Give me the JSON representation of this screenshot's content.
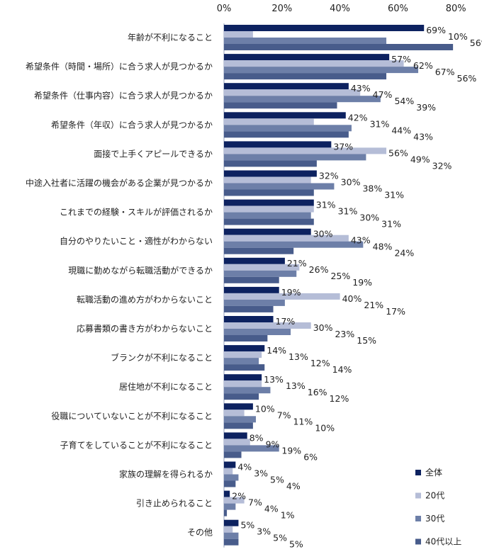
{
  "chart_data": {
    "type": "bar",
    "orientation": "horizontal",
    "xlim": [
      0,
      80
    ],
    "x_ticks": [
      "0%",
      "20%",
      "40%",
      "60%",
      "80%"
    ],
    "grid": false,
    "legend_position": "bottom-right",
    "categories": [
      "年齢が不利になること",
      "希望条件（時間・場所）に合う求人が見つかるか",
      "希望条件（仕事内容）に合う求人が見つかるか",
      "希望条件（年収）に合う求人が見つかるか",
      "面接で上手くアピールできるか",
      "中途入社者に活躍の機会がある企業が見つかるか",
      "これまでの経験・スキルが評価されるか",
      "自分のやりたいこと・適性がわからない",
      "現職に勤めながら転職活動ができるか",
      "転職活動の進め方がわからないこと",
      "応募書類の書き方がわからないこと",
      "ブランクが不利になること",
      "居住地が不利になること",
      "役職についていないことが不利になること",
      "子育てをしていることが不利になること",
      "家族の理解を得られるか",
      "引き止められること",
      "その他"
    ],
    "series": [
      {
        "name": "全体",
        "color": "#0d2260",
        "values": [
          69,
          57,
          43,
          42,
          37,
          32,
          31,
          30,
          21,
          19,
          17,
          14,
          13,
          10,
          8,
          4,
          2,
          5
        ]
      },
      {
        "name": "20代",
        "color": "#b5bdd7",
        "values": [
          10,
          62,
          47,
          31,
          56,
          30,
          31,
          43,
          26,
          40,
          30,
          13,
          13,
          7,
          9,
          3,
          7,
          3
        ]
      },
      {
        "name": "30代",
        "color": "#6d7fa8",
        "values": [
          56,
          67,
          54,
          44,
          49,
          38,
          30,
          48,
          25,
          21,
          23,
          12,
          16,
          11,
          19,
          5,
          4,
          5
        ]
      },
      {
        "name": "40代以上",
        "color": "#485c8b",
        "values": [
          79,
          56,
          39,
          43,
          32,
          31,
          31,
          24,
          19,
          17,
          15,
          14,
          12,
          10,
          6,
          4,
          1,
          5
        ]
      }
    ],
    "value_suffix": "%"
  }
}
